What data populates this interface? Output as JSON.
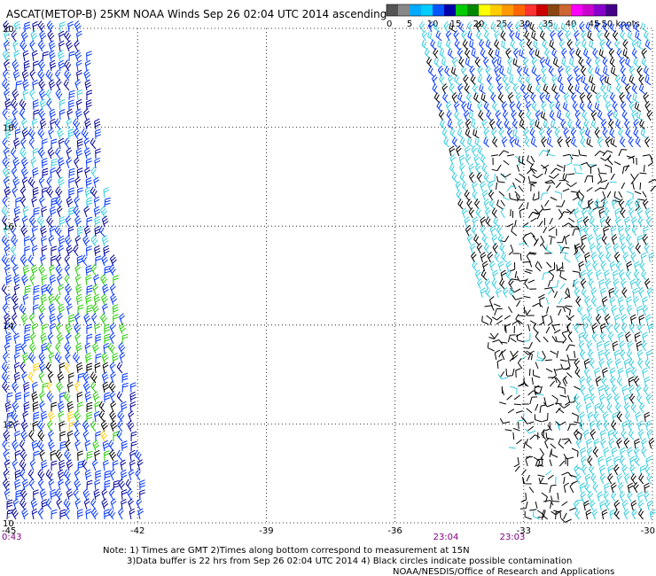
{
  "title": "ASCAT(METOP-B) 25KM NOAA Winds Sep 26 02:04 UTC 2014 ascending",
  "legend": {
    "colors": [
      "#555555",
      "#888888",
      "#00aaff",
      "#00ccff",
      "#0055ff",
      "#0000aa",
      "#00cc00",
      "#008800",
      "#ffff00",
      "#ffcc00",
      "#ff9900",
      "#ff6600",
      "#ff3333",
      "#cc0000",
      "#8b4513",
      "#cc6633",
      "#ff00ff",
      "#cc00cc",
      "#8800cc",
      "#440088"
    ],
    "tick_labels": [
      "0",
      "5",
      "10",
      "15",
      "20",
      "25",
      "30",
      "35",
      "40",
      "45",
      ">50 knots"
    ]
  },
  "axes": {
    "lat_labels": [
      "20",
      "18",
      "16",
      "14",
      "12",
      "10"
    ],
    "lon_labels": [
      "-45",
      "-42",
      "-39",
      "-36",
      "-33",
      "-30"
    ]
  },
  "time_labels": [
    "0:43",
    "23:04",
    "23:03"
  ],
  "notes": {
    "line1": "Note: 1) Times are GMT 2)Times along bottom correspond to measurement at 15N",
    "line2": "3)Data buffer is 22 hrs from Sep 26 02:04 UTC 2014 4) Black circles indicate possible contamination",
    "line3": "NOAA/NESDIS/Office of Research and Applications"
  },
  "wind_colors": {
    "black": "#000000",
    "cyan": "#33ccdd",
    "blue": "#0033ff",
    "navy": "#000099",
    "green": "#22cc00",
    "yellow": "#ffcc00"
  }
}
